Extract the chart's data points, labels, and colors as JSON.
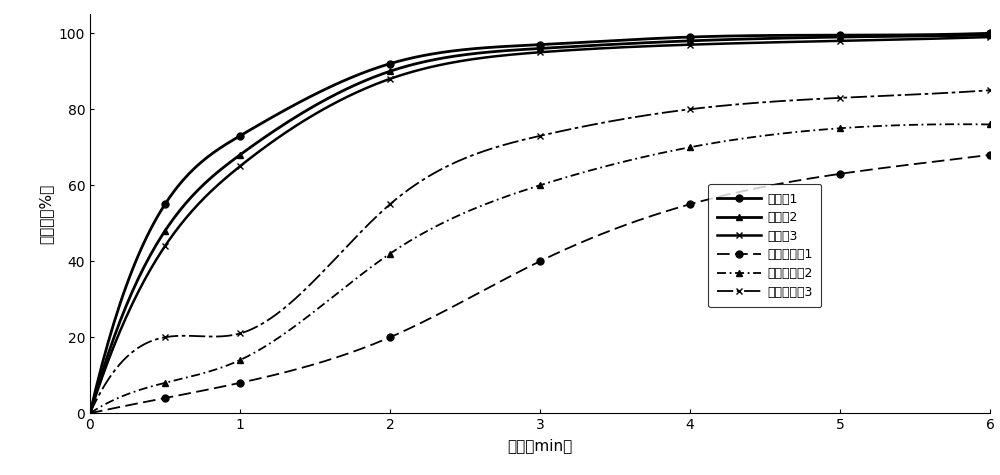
{
  "x": [
    0,
    0.5,
    1,
    2,
    3,
    4,
    5,
    6
  ],
  "series_solid": [
    {
      "label": "实施例1",
      "y": [
        0,
        55,
        73,
        92,
        97,
        99,
        99.5,
        100
      ],
      "marker": "o",
      "linewidth": 2.0
    },
    {
      "label": "实施例2",
      "y": [
        0,
        48,
        68,
        90,
        96,
        98,
        99,
        99.5
      ],
      "marker": "^",
      "linewidth": 2.0
    },
    {
      "label": "实施例3",
      "y": [
        0,
        44,
        65,
        88,
        95,
        97,
        98,
        99
      ],
      "marker": "x",
      "linewidth": 1.8
    }
  ],
  "series_dashed": [
    {
      "label": "对比实施例1",
      "y": [
        0,
        4,
        8,
        20,
        40,
        55,
        63,
        68
      ],
      "marker": "o",
      "linewidth": 1.3,
      "dashes": [
        7,
        3
      ]
    },
    {
      "label": "对比实施例2",
      "y": [
        0,
        8,
        14,
        42,
        60,
        70,
        75,
        76
      ],
      "marker": "^",
      "linewidth": 1.3,
      "dashes": [
        5,
        2,
        1,
        2
      ]
    },
    {
      "label": "对比实施例3",
      "y": [
        0,
        20,
        21,
        55,
        73,
        80,
        83,
        85
      ],
      "marker": "x",
      "linewidth": 1.3,
      "dashes": [
        9,
        2,
        2,
        2
      ]
    }
  ],
  "color": "#000000",
  "xlabel": "时间（min）",
  "ylabel": "溢出度（%）",
  "xlim": [
    0,
    6
  ],
  "ylim": [
    0,
    105
  ],
  "xticks": [
    0,
    1,
    2,
    3,
    4,
    5,
    6
  ],
  "yticks": [
    0,
    20,
    40,
    60,
    80,
    100
  ],
  "background_color": "#ffffff",
  "figure_width": 10.0,
  "figure_height": 4.75
}
